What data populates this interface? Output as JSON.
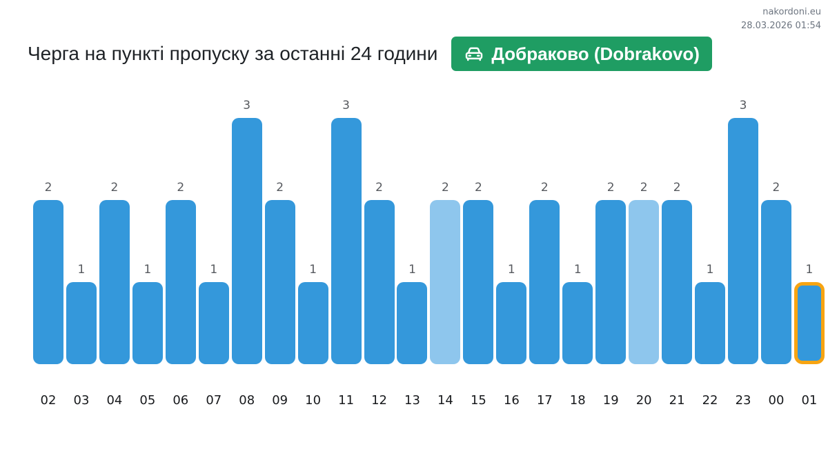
{
  "page": {
    "site": "nakordoni.eu",
    "datetime": "28.03.2026 01:54"
  },
  "header": {
    "title": "Черга на пункті пропуску за останні 24 години",
    "badge": {
      "label": "Добраково (Dobrakovo)",
      "icon": "car-front-icon",
      "bg_color": "#1f9d63",
      "text_color": "#ffffff"
    }
  },
  "chart_data": {
    "type": "bar",
    "title": "Черга на пункті пропуску за останні 24 години",
    "xlabel": "",
    "ylabel": "",
    "ylim": [
      0,
      3
    ],
    "grid": false,
    "legend": false,
    "value_labels_above_bars": true,
    "categories": [
      "02",
      "03",
      "04",
      "05",
      "06",
      "07",
      "08",
      "09",
      "10",
      "11",
      "12",
      "13",
      "14",
      "15",
      "16",
      "17",
      "18",
      "19",
      "20",
      "21",
      "22",
      "23",
      "00",
      "01"
    ],
    "values": [
      2,
      1,
      2,
      1,
      2,
      1,
      3,
      2,
      1,
      3,
      2,
      1,
      2,
      2,
      1,
      2,
      1,
      2,
      2,
      2,
      1,
      3,
      2,
      1
    ],
    "muted_indices": [
      12,
      18
    ],
    "highlighted_index": 23,
    "colors": {
      "bar": "#3498db",
      "bar_muted": "#8ec6ed",
      "highlight_border": "#f7a412",
      "value_label": "#56595e",
      "axis_label": "#17191c"
    }
  }
}
